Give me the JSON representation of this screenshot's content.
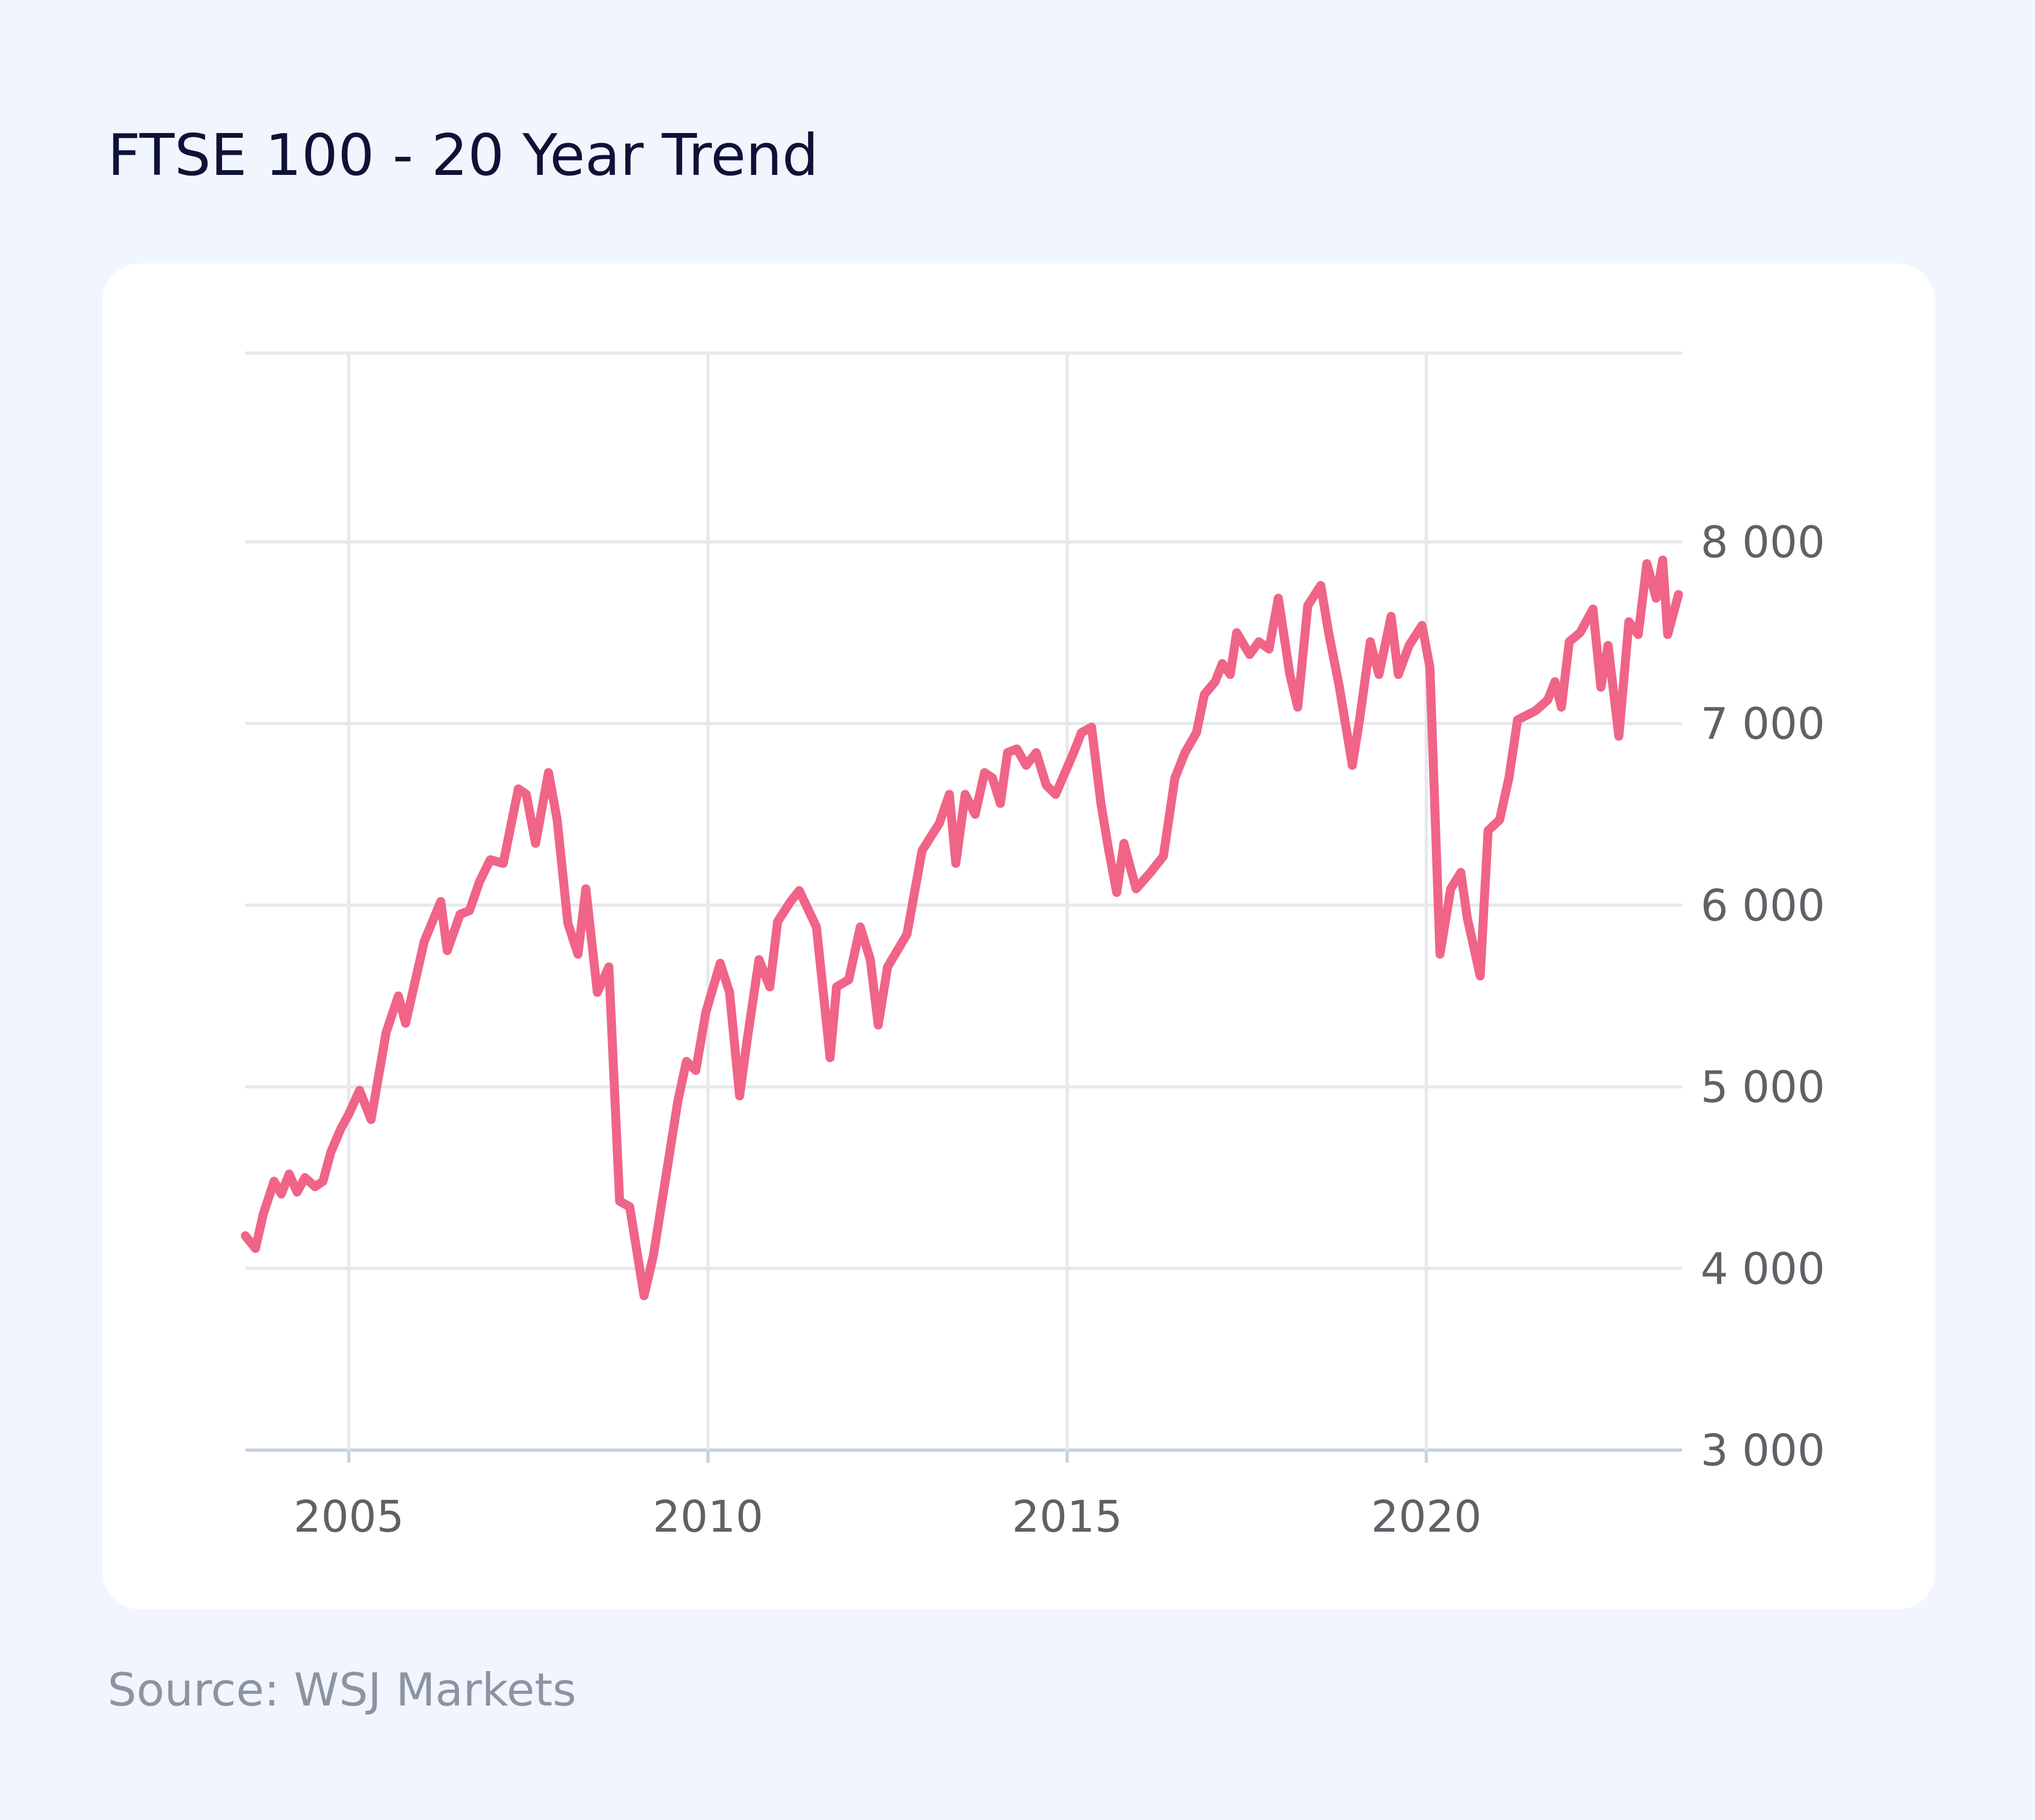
{
  "chart_data": {
    "type": "line",
    "title": "FTSE 100 - 20 Year Trend",
    "source": "Source: WSJ Markets",
    "color": "#f06488",
    "grid": true,
    "xlim": [
      2003.56,
      2023.56
    ],
    "xticks": [
      2005,
      2010,
      2015,
      2020
    ],
    "ylim": [
      3000,
      9040
    ],
    "yticks": [
      {
        "value": 3000,
        "label": "3 000"
      },
      {
        "value": 4000,
        "label": "4 000"
      },
      {
        "value": 5000,
        "label": "5 000"
      },
      {
        "value": 6000,
        "label": "6 000"
      },
      {
        "value": 7000,
        "label": "7 000"
      },
      {
        "value": 8000,
        "label": "8 000"
      }
    ],
    "x": [
      2003.56,
      2003.7,
      2003.81,
      2003.96,
      2004.06,
      2004.17,
      2004.28,
      2004.39,
      2004.53,
      2004.64,
      2004.75,
      2004.89,
      2005.0,
      2005.15,
      2005.31,
      2005.52,
      2005.69,
      2005.79,
      2006.05,
      2006.28,
      2006.37,
      2006.55,
      2006.68,
      2006.82,
      2006.97,
      2007.15,
      2007.36,
      2007.47,
      2007.6,
      2007.78,
      2007.9,
      2008.05,
      2008.19,
      2008.3,
      2008.46,
      2008.62,
      2008.77,
      2008.91,
      2009.11,
      2009.24,
      2009.38,
      2009.58,
      2009.7,
      2009.83,
      2009.97,
      2010.17,
      2010.3,
      2010.44,
      2010.55,
      2010.71,
      2010.86,
      2010.97,
      2011.15,
      2011.27,
      2011.51,
      2011.7,
      2011.79,
      2011.96,
      2012.12,
      2012.26,
      2012.37,
      2012.5,
      2012.77,
      2012.98,
      2013.22,
      2013.36,
      2013.45,
      2013.58,
      2013.72,
      2013.85,
      2013.96,
      2014.07,
      2014.17,
      2014.3,
      2014.43,
      2014.57,
      2014.71,
      2014.84,
      2014.97,
      2015.09,
      2015.2,
      2015.34,
      2015.47,
      2015.58,
      2015.69,
      2015.79,
      2015.96,
      2016.16,
      2016.34,
      2016.5,
      2016.64,
      2016.8,
      2016.91,
      2017.06,
      2017.16,
      2017.27,
      2017.36,
      2017.54,
      2017.67,
      2017.81,
      2017.94,
      2018.1,
      2018.21,
      2018.35,
      2018.53,
      2018.64,
      2018.79,
      2018.97,
      2019.07,
      2019.22,
      2019.34,
      2019.51,
      2019.61,
      2019.76,
      2019.94,
      2020.05,
      2020.19,
      2020.34,
      2020.48,
      2020.57,
      2020.75,
      2020.86,
      2021.02,
      2021.15,
      2021.27,
      2021.52,
      2021.69,
      2021.79,
      2021.88,
      2021.99,
      2022.14,
      2022.32,
      2022.43,
      2022.53,
      2022.68,
      2022.82,
      2022.95,
      2023.07,
      2023.2,
      2023.29,
      2023.36,
      2023.51
    ],
    "values": [
      4180,
      4110,
      4300,
      4480,
      4410,
      4520,
      4420,
      4500,
      4450,
      4480,
      4640,
      4770,
      4850,
      4980,
      4820,
      5300,
      5500,
      5350,
      5800,
      6020,
      5750,
      5950,
      5970,
      6130,
      6250,
      6230,
      6640,
      6610,
      6340,
      6730,
      6470,
      5900,
      5730,
      6090,
      5520,
      5660,
      4370,
      4340,
      3850,
      4070,
      4420,
      4920,
      5140,
      5090,
      5410,
      5680,
      5520,
      4950,
      5270,
      5700,
      5550,
      5910,
      6020,
      6080,
      5880,
      5160,
      5550,
      5590,
      5880,
      5700,
      5340,
      5660,
      5840,
      6300,
      6450,
      6610,
      6230,
      6610,
      6500,
      6730,
      6700,
      6560,
      6840,
      6860,
      6770,
      6840,
      6660,
      6610,
      6730,
      6840,
      6950,
      6980,
      6560,
      6300,
      6070,
      6340,
      6090,
      6180,
      6270,
      6700,
      6840,
      6950,
      7160,
      7230,
      7330,
      7270,
      7500,
      7380,
      7450,
      7410,
      7690,
      7270,
      7090,
      7650,
      7760,
      7500,
      7200,
      6770,
      7020,
      7450,
      7270,
      7590,
      7270,
      7430,
      7540,
      7310,
      5730,
      6090,
      6180,
      5930,
      5610,
      6410,
      6470,
      6700,
      7020,
      7070,
      7130,
      7230,
      7090,
      7450,
      7500,
      7630,
      7200,
      7430,
      6930,
      7560,
      7490,
      7880,
      7690,
      7900,
      7490,
      7710
    ]
  }
}
